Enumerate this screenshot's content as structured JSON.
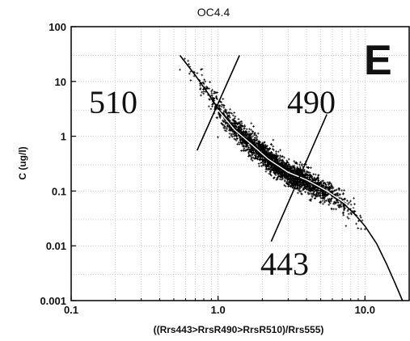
{
  "chart_data": {
    "type": "scatter",
    "title": "OC4.4",
    "xlabel": "((Rrs443>RrsR490>RrsR510)/Rrs555)",
    "ylabel": "C (ug/l)",
    "xscale": "log",
    "yscale": "log",
    "xlim": [
      0.1,
      20
    ],
    "ylim": [
      0.001,
      100
    ],
    "grid": true,
    "xtick_labels": [
      "0.1",
      "1.0",
      "10.0"
    ],
    "ytick_labels": [
      "100",
      "10",
      "1",
      "0.1",
      "0.01",
      "0.001"
    ],
    "panel_label": "E",
    "region_labels": [
      "510",
      "490",
      "443"
    ],
    "series": [
      {
        "type": "scatter",
        "marker": "small cross",
        "color": "#000000",
        "approx_points": 2500,
        "distribution": "dense band along fitted curve",
        "x_range": [
          0.55,
          10.0
        ],
        "y_range": [
          0.02,
          50.0
        ]
      },
      {
        "type": "line",
        "color": "#000000",
        "description": "OC4 polynomial fit",
        "x": [
          0.55,
          0.7,
          0.85,
          1.0,
          1.3,
          1.7,
          2.2,
          3.0,
          4.0,
          5.5,
          7.0,
          8.5,
          10.0,
          12.0,
          14.0,
          16.0,
          18.0
        ],
        "y": [
          30.0,
          13.0,
          6.2,
          3.2,
          1.4,
          0.72,
          0.38,
          0.21,
          0.15,
          0.097,
          0.062,
          0.038,
          0.023,
          0.011,
          0.0047,
          0.0021,
          0.001
        ]
      },
      {
        "type": "line",
        "color": "#ffffff",
        "description": "binned mean of data",
        "x": [
          1.0,
          1.3,
          1.7,
          2.2,
          3.0,
          4.0,
          5.5,
          7.0,
          8.5
        ],
        "y": [
          3.0,
          1.3,
          0.7,
          0.38,
          0.22,
          0.16,
          0.1,
          0.065,
          0.045
        ]
      },
      {
        "type": "line",
        "color": "#000000",
        "description": "band boundary near 1.0",
        "x": [
          0.72,
          1.4
        ],
        "y": [
          0.55,
          30.0
        ]
      },
      {
        "type": "line",
        "color": "#000000",
        "description": "band boundary near 3.5",
        "x": [
          2.3,
          5.5
        ],
        "y": [
          0.012,
          2.5
        ]
      }
    ]
  }
}
